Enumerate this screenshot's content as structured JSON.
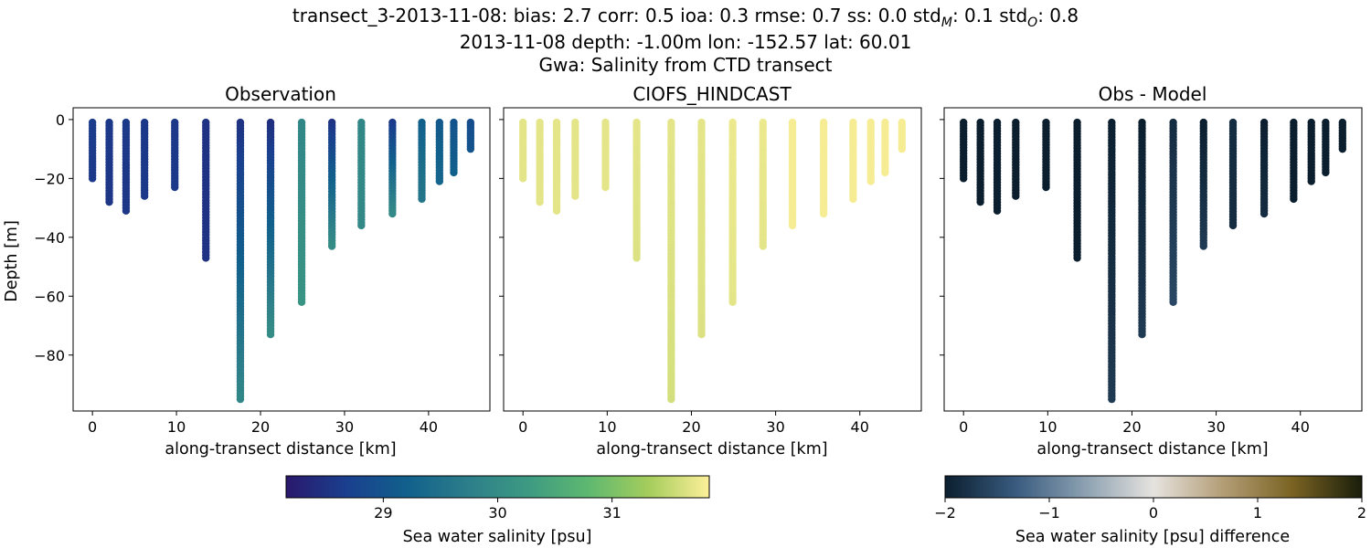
{
  "figure": {
    "title_lines": [
      "transect_3-2013-11-08: bias: 2.7  corr: 0.5  ioa: 0.3  rmse: 0.7  ss: 0.0  std",
      "2013-11-08 depth: -1.00m lon: -152.57 lat: 60.01",
      "Gwa: Salinity from CTD transect"
    ],
    "title_suffix": {
      "std_model_sub": "M",
      "std_model_value": ": 0.1  std",
      "std_obs_sub": "O",
      "std_obs_value": ": 0.8"
    }
  },
  "chart_data": [
    {
      "type": "scatter",
      "title": "Observation",
      "xlabel": "along-transect distance [km]",
      "ylabel": "Depth [m]",
      "xlim": [
        -2.3,
        47.3
      ],
      "ylim": [
        -99,
        4
      ],
      "xticks": [
        0,
        10,
        20,
        30,
        40
      ],
      "yticks": [
        0,
        -20,
        -40,
        -60,
        -80
      ],
      "colormap": "haline",
      "stations": [
        {
          "x": 0.0,
          "max_depth": -20,
          "salinity_top": 28.65,
          "salinity_bottom": 28.6
        },
        {
          "x": 2.0,
          "max_depth": -28,
          "salinity_top": 28.6,
          "salinity_bottom": 28.55
        },
        {
          "x": 4.0,
          "max_depth": -31,
          "salinity_top": 28.6,
          "salinity_bottom": 28.55
        },
        {
          "x": 6.2,
          "max_depth": -26,
          "salinity_top": 28.6,
          "salinity_bottom": 28.6
        },
        {
          "x": 9.8,
          "max_depth": -23,
          "salinity_top": 28.6,
          "salinity_bottom": 28.6
        },
        {
          "x": 13.5,
          "max_depth": -47,
          "salinity_top": 28.5,
          "salinity_bottom": 28.5
        },
        {
          "x": 17.6,
          "max_depth": -95,
          "salinity_top": 28.5,
          "salinity_bottom": 29.9
        },
        {
          "x": 21.2,
          "max_depth": -73,
          "salinity_top": 28.45,
          "salinity_bottom": 30.0
        },
        {
          "x": 24.9,
          "max_depth": -62,
          "salinity_top": 29.9,
          "salinity_bottom": 30.15
        },
        {
          "x": 28.5,
          "max_depth": -43,
          "salinity_top": 28.5,
          "salinity_bottom": 30.0
        },
        {
          "x": 32.0,
          "max_depth": -36,
          "salinity_top": 29.9,
          "salinity_bottom": 29.95
        },
        {
          "x": 35.7,
          "max_depth": -32,
          "salinity_top": 28.6,
          "salinity_bottom": 29.95
        },
        {
          "x": 39.2,
          "max_depth": -27,
          "salinity_top": 29.2,
          "salinity_bottom": 29.6
        },
        {
          "x": 41.3,
          "max_depth": -21,
          "salinity_top": 29.1,
          "salinity_bottom": 29.3
        },
        {
          "x": 43.0,
          "max_depth": -18,
          "salinity_top": 29.0,
          "salinity_bottom": 29.2
        },
        {
          "x": 45.0,
          "max_depth": -10,
          "salinity_top": 28.9,
          "salinity_bottom": 29.0
        }
      ]
    },
    {
      "type": "scatter",
      "title": "CIOFS_HINDCAST",
      "xlabel": "along-transect distance [km]",
      "xlim": [
        -2.3,
        47.3
      ],
      "ylim": [
        -99,
        4
      ],
      "xticks": [
        0,
        10,
        20,
        30,
        40
      ],
      "colormap": "haline",
      "stations": [
        {
          "x": 0.0,
          "max_depth": -20,
          "salinity_top": 31.7,
          "salinity_bottom": 31.7
        },
        {
          "x": 2.0,
          "max_depth": -28,
          "salinity_top": 31.7,
          "salinity_bottom": 31.7
        },
        {
          "x": 4.0,
          "max_depth": -31,
          "salinity_top": 31.7,
          "salinity_bottom": 31.7
        },
        {
          "x": 6.2,
          "max_depth": -26,
          "salinity_top": 31.7,
          "salinity_bottom": 31.7
        },
        {
          "x": 9.8,
          "max_depth": -23,
          "salinity_top": 31.7,
          "salinity_bottom": 31.7
        },
        {
          "x": 13.5,
          "max_depth": -47,
          "salinity_top": 31.7,
          "salinity_bottom": 31.65
        },
        {
          "x": 17.6,
          "max_depth": -95,
          "salinity_top": 31.7,
          "salinity_bottom": 31.6
        },
        {
          "x": 21.2,
          "max_depth": -73,
          "salinity_top": 31.7,
          "salinity_bottom": 31.65
        },
        {
          "x": 24.9,
          "max_depth": -62,
          "salinity_top": 31.75,
          "salinity_bottom": 31.7
        },
        {
          "x": 28.5,
          "max_depth": -43,
          "salinity_top": 31.75,
          "salinity_bottom": 31.7
        },
        {
          "x": 32.0,
          "max_depth": -36,
          "salinity_top": 31.8,
          "salinity_bottom": 31.8
        },
        {
          "x": 35.7,
          "max_depth": -32,
          "salinity_top": 31.8,
          "salinity_bottom": 31.8
        },
        {
          "x": 39.2,
          "max_depth": -27,
          "salinity_top": 31.8,
          "salinity_bottom": 31.8
        },
        {
          "x": 41.3,
          "max_depth": -21,
          "salinity_top": 31.8,
          "salinity_bottom": 31.8
        },
        {
          "x": 43.0,
          "max_depth": -18,
          "salinity_top": 31.8,
          "salinity_bottom": 31.8
        },
        {
          "x": 45.0,
          "max_depth": -10,
          "salinity_top": 31.8,
          "salinity_bottom": 31.8
        }
      ]
    },
    {
      "type": "scatter",
      "title": "Obs - Model",
      "xlabel": "along-transect distance [km]",
      "xlim": [
        -2.3,
        47.3
      ],
      "ylim": [
        -99,
        4
      ],
      "xticks": [
        0,
        10,
        20,
        30,
        40
      ],
      "colormap": "diff",
      "stations": [
        {
          "x": 0.0,
          "max_depth": -20,
          "salinity_top": -2.0,
          "salinity_bottom": -2.0
        },
        {
          "x": 2.0,
          "max_depth": -28,
          "salinity_top": -2.0,
          "salinity_bottom": -2.0
        },
        {
          "x": 4.0,
          "max_depth": -31,
          "salinity_top": -2.0,
          "salinity_bottom": -2.0
        },
        {
          "x": 6.2,
          "max_depth": -26,
          "salinity_top": -2.0,
          "salinity_bottom": -2.0
        },
        {
          "x": 9.8,
          "max_depth": -23,
          "salinity_top": -2.0,
          "salinity_bottom": -2.0
        },
        {
          "x": 13.5,
          "max_depth": -47,
          "salinity_top": -2.0,
          "salinity_bottom": -2.0
        },
        {
          "x": 17.6,
          "max_depth": -95,
          "salinity_top": -2.0,
          "salinity_bottom": -1.7
        },
        {
          "x": 21.2,
          "max_depth": -73,
          "salinity_top": -2.0,
          "salinity_bottom": -1.7
        },
        {
          "x": 24.9,
          "max_depth": -62,
          "salinity_top": -1.85,
          "salinity_bottom": -1.55
        },
        {
          "x": 28.5,
          "max_depth": -43,
          "salinity_top": -2.0,
          "salinity_bottom": -1.7
        },
        {
          "x": 32.0,
          "max_depth": -36,
          "salinity_top": -1.85,
          "salinity_bottom": -1.85
        },
        {
          "x": 35.7,
          "max_depth": -32,
          "salinity_top": -2.0,
          "salinity_bottom": -1.85
        },
        {
          "x": 39.2,
          "max_depth": -27,
          "salinity_top": -2.0,
          "salinity_bottom": -2.0
        },
        {
          "x": 41.3,
          "max_depth": -21,
          "salinity_top": -2.0,
          "salinity_bottom": -2.0
        },
        {
          "x": 43.0,
          "max_depth": -18,
          "salinity_top": -2.0,
          "salinity_bottom": -2.0
        },
        {
          "x": 45.0,
          "max_depth": -10,
          "salinity_top": -2.0,
          "salinity_bottom": -2.0
        }
      ]
    }
  ],
  "colorbars": [
    {
      "label": "Sea water salinity [psu]",
      "vmin": 28.15,
      "vmax": 31.85,
      "ticks": [
        "29",
        "30",
        "31"
      ],
      "tick_values": [
        29,
        30,
        31
      ],
      "colormap": "haline"
    },
    {
      "label": "Sea water salinity [psu] difference",
      "vmin": -2,
      "vmax": 2,
      "ticks": [
        "−2",
        "−1",
        "0",
        "1",
        "2"
      ],
      "tick_values": [
        -2,
        -1,
        0,
        1,
        2
      ],
      "colormap": "diff"
    }
  ],
  "colormaps": {
    "haline": [
      "#2a186c",
      "#1a3f8e",
      "#11608c",
      "#2c7e8a",
      "#3d9a82",
      "#5eb870",
      "#a5cd5c",
      "#fdef9a"
    ],
    "diff": [
      "#0b1f2f",
      "#385a7e",
      "#8a9fb0",
      "#e6e3df",
      "#b39d76",
      "#7a6322",
      "#191e0b"
    ]
  }
}
